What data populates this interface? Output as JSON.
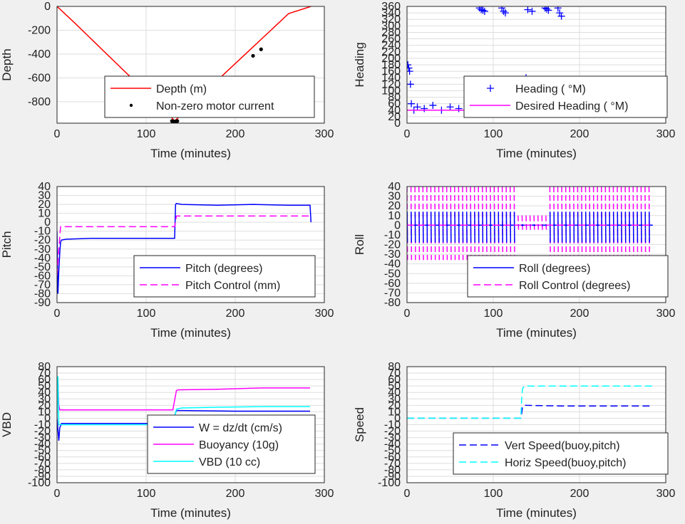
{
  "chart_data": [
    {
      "type": "line",
      "xlabel": "Time (minutes)",
      "ylabel": "Depth",
      "xlim": [
        0,
        300
      ],
      "ylim": [
        -980,
        0
      ],
      "xticks": [
        "0",
        "100",
        "200",
        "300"
      ],
      "yticks": [
        "0",
        "-200",
        "-400",
        "-600",
        "-800"
      ],
      "grid": true,
      "legend_position": "lower-center",
      "series": [
        {
          "name": "Depth (m)",
          "color": "#ff0000",
          "style": "solid",
          "x": [
            0,
            20,
            40,
            60,
            80,
            100,
            120,
            132,
            140,
            160,
            180,
            200,
            220,
            240,
            260,
            285
          ],
          "y": [
            0,
            -140,
            -285,
            -430,
            -575,
            -715,
            -860,
            -962,
            -905,
            -760,
            -620,
            -480,
            -340,
            -200,
            -60,
            0
          ]
        },
        {
          "name": "Non-zero motor current",
          "color": "#000000",
          "style": "markers",
          "x": [
            129,
            131,
            133,
            135,
            220,
            229
          ],
          "y": [
            -962,
            -965,
            -965,
            -962,
            -415,
            -360
          ]
        }
      ]
    },
    {
      "type": "scatter",
      "xlabel": "Time (minutes)",
      "ylabel": "Heading",
      "xlim": [
        0,
        300
      ],
      "ylim": [
        0,
        360
      ],
      "xticks": [
        "0",
        "100",
        "200",
        "300"
      ],
      "yticks": [
        "0",
        "20",
        "40",
        "60",
        "80",
        "100",
        "120",
        "140",
        "160",
        "180",
        "200",
        "220",
        "240",
        "260",
        "280",
        "300",
        "320",
        "340",
        "360"
      ],
      "grid": true,
      "legend_position": "center-right",
      "series": [
        {
          "name": "Heading ( °M)",
          "color": "#0000ff",
          "style": "plus-markers",
          "x": [
            1,
            2,
            3,
            4,
            5,
            8,
            12,
            20,
            30,
            40,
            50,
            60,
            70,
            80,
            84,
            86,
            88,
            90,
            95,
            100,
            110,
            112,
            114,
            120,
            130,
            134,
            136,
            138,
            140,
            145,
            140,
            142,
            150,
            160,
            162,
            164,
            170,
            175,
            177,
            179,
            185,
            200,
            220,
            240,
            260,
            284
          ],
          "y": [
            180,
            170,
            160,
            120,
            60,
            40,
            50,
            45,
            55,
            40,
            50,
            45,
            40,
            50,
            355,
            350,
            348,
            345,
            60,
            40,
            355,
            345,
            340,
            50,
            40,
            90,
            120,
            140,
            350,
            345,
            50,
            40,
            45,
            355,
            352,
            348,
            50,
            355,
            340,
            330,
            45,
            50,
            40,
            45,
            50,
            45
          ]
        },
        {
          "name": "Desired Heading ( °M)",
          "color": "#ff00ff",
          "style": "solid",
          "x": [
            0,
            285
          ],
          "y": [
            40,
            40
          ]
        }
      ]
    },
    {
      "type": "line",
      "xlabel": "Time (minutes)",
      "ylabel": "Pitch",
      "xlim": [
        0,
        300
      ],
      "ylim": [
        -90,
        40
      ],
      "xticks": [
        "0",
        "100",
        "200",
        "300"
      ],
      "yticks": [
        "40",
        "30",
        "20",
        "10",
        "0",
        "-10",
        "-20",
        "-30",
        "-40",
        "-50",
        "-60",
        "-70",
        "-80",
        "-90"
      ],
      "grid": true,
      "legend_position": "lower-right",
      "series": [
        {
          "name": "Pitch (degrees)",
          "color": "#0000ff",
          "style": "solid",
          "x": [
            0,
            1,
            2,
            3,
            4,
            5,
            10,
            40,
            80,
            120,
            132,
            133,
            134,
            140,
            180,
            220,
            260,
            284,
            285
          ],
          "y": [
            -10,
            -80,
            -55,
            -35,
            -22,
            -20,
            -19,
            -18,
            -18,
            -18,
            -18,
            20,
            21,
            20,
            19,
            20,
            19,
            19,
            0
          ]
        },
        {
          "name": "Pitch Control (mm)",
          "color": "#ff00ff",
          "style": "dashed",
          "x": [
            0,
            2,
            4,
            10,
            132,
            134,
            285
          ],
          "y": [
            -60,
            -30,
            -5,
            -5,
            -5,
            7,
            7
          ]
        }
      ]
    },
    {
      "type": "line",
      "xlabel": "Time (minutes)",
      "ylabel": "Roll",
      "xlim": [
        0,
        300
      ],
      "ylim": [
        -80,
        40
      ],
      "xticks": [
        "0",
        "100",
        "200",
        "300"
      ],
      "yticks": [
        "40",
        "30",
        "20",
        "10",
        "0",
        "-10",
        "-20",
        "-30",
        "-40",
        "-50",
        "-60",
        "-70",
        "-80"
      ],
      "grid": true,
      "legend_position": "lower-right",
      "series": [
        {
          "name": "Roll (degrees)",
          "color": "#0000ff",
          "style": "solid",
          "x": [
            0,
            285
          ],
          "y": [
            0,
            0
          ]
        },
        {
          "name": "Roll Control (degrees)",
          "color": "#ff00ff",
          "style": "dashed",
          "x": [
            0,
            285
          ],
          "y": [
            0,
            0
          ]
        }
      ]
    },
    {
      "type": "line",
      "xlabel": "Time (minutes)",
      "ylabel": "VBD",
      "xlim": [
        0,
        300
      ],
      "ylim": [
        -100,
        80
      ],
      "xticks": [
        "0",
        "100",
        "200",
        "300"
      ],
      "yticks": [
        "80",
        "70",
        "60",
        "50",
        "40",
        "30",
        "20",
        "10",
        "0",
        "-10",
        "-20",
        "-30",
        "-40",
        "-50",
        "-60",
        "-70",
        "-80",
        "-90",
        "-100"
      ],
      "grid": true,
      "legend_position": "lower-right",
      "series": [
        {
          "name": "W = dz/dt (cm/s)",
          "color": "#0000ff",
          "style": "solid",
          "x": [
            0,
            2,
            3,
            5,
            10,
            60,
            130,
            132,
            134,
            140,
            200,
            284
          ],
          "y": [
            0,
            -35,
            -15,
            -8,
            -8,
            -8,
            -8,
            4,
            12,
            12,
            11,
            11
          ]
        },
        {
          "name": "Buoyancy (10g)",
          "color": "#ff00ff",
          "style": "solid",
          "x": [
            0,
            1,
            2,
            3,
            130,
            134,
            136,
            180,
            230,
            284
          ],
          "y": [
            0,
            60,
            20,
            13,
            13,
            43,
            44,
            45,
            47,
            47
          ]
        },
        {
          "name": "VBD (10 cc)",
          "color": "#00ffff",
          "style": "solid",
          "x": [
            0,
            1,
            2,
            3,
            130,
            134,
            140,
            180,
            230,
            284
          ],
          "y": [
            0,
            65,
            -10,
            -10,
            -10,
            14,
            16,
            17,
            18,
            18
          ]
        }
      ]
    },
    {
      "type": "line",
      "xlabel": "Time (minutes)",
      "ylabel": "Speed",
      "xlim": [
        0,
        300
      ],
      "ylim": [
        -100,
        80
      ],
      "xticks": [
        "0",
        "100",
        "200",
        "300"
      ],
      "yticks": [
        "80",
        "70",
        "60",
        "50",
        "40",
        "30",
        "20",
        "10",
        "0",
        "-10",
        "-20",
        "-30",
        "-40",
        "-50",
        "-60",
        "-70",
        "-80",
        "-90",
        "-100"
      ],
      "grid": true,
      "legend_position": "lower-right",
      "series": [
        {
          "name": "Vert Speed(buoy,pitch)",
          "color": "#0000ff",
          "style": "dashed",
          "x": [
            0,
            132,
            133,
            134,
            136,
            180,
            230,
            284
          ],
          "y": [
            0,
            0,
            8,
            18,
            20,
            19,
            19,
            19
          ]
        },
        {
          "name": "Horiz Speed(buoy,pitch)",
          "color": "#00ffff",
          "style": "dashed",
          "x": [
            0,
            132,
            133,
            134,
            136,
            180,
            230,
            284
          ],
          "y": [
            0,
            0,
            30,
            46,
            50,
            50,
            50,
            50
          ]
        }
      ]
    }
  ]
}
